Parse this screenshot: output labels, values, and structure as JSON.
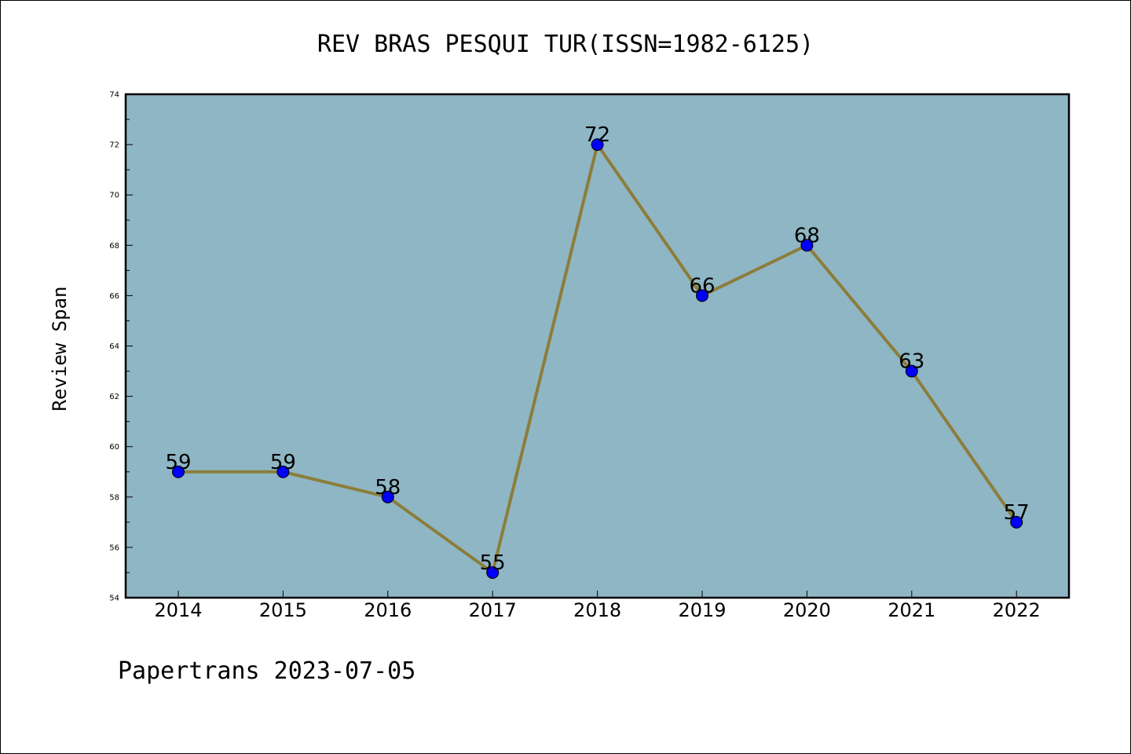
{
  "chart_data": {
    "type": "line",
    "title": "REV BRAS PESQUI TUR(ISSN=1982-6125)",
    "xlabel": "",
    "ylabel": "Review Span",
    "categories": [
      "2014",
      "2015",
      "2016",
      "2017",
      "2018",
      "2019",
      "2020",
      "2021",
      "2022"
    ],
    "series": [
      {
        "values": [
          59,
          59,
          58,
          55,
          72,
          66,
          68,
          63,
          57
        ]
      }
    ],
    "data_labels": [
      "59",
      "59",
      "58",
      "55",
      "72",
      "66",
      "68",
      "63",
      "57"
    ],
    "ylim": [
      54,
      74
    ],
    "yticks": [
      54,
      56,
      58,
      60,
      62,
      64,
      66,
      68,
      70,
      72,
      74
    ],
    "grid": false,
    "colors": {
      "plot_background": "#8fb6c4",
      "line": "#8b7d3a",
      "marker": "#0000ff",
      "axes": "#000000"
    }
  },
  "footer": "Papertrans 2023-07-05"
}
